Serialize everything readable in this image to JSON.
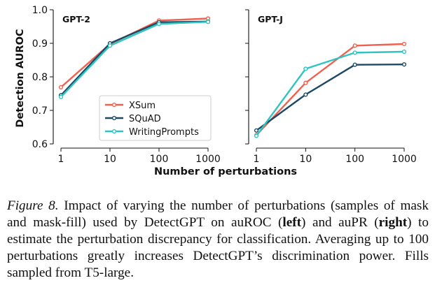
{
  "figure": {
    "ylabel": "Detection AUROC",
    "xlabel": "Number of perturbations",
    "legend": [
      "XSum",
      "SQuAD",
      "WritingPrompts"
    ]
  },
  "chart_data": [
    {
      "type": "line",
      "title": "GPT-2",
      "x": [
        1,
        10,
        100,
        1000
      ],
      "xscale": "log",
      "ylim": [
        0.6,
        1.0
      ],
      "yticks": [
        0.6,
        0.7,
        0.8,
        0.9,
        1.0
      ],
      "xticks": [
        "1",
        "10",
        "100",
        "1000"
      ],
      "grid": false,
      "legend_position": "lower-right",
      "series": [
        {
          "name": "XSum",
          "color": "#f0604e",
          "values": [
            0.769,
            0.898,
            0.968,
            0.974
          ]
        },
        {
          "name": "SQuAD",
          "color": "#1b4965",
          "values": [
            0.745,
            0.9,
            0.963,
            0.965
          ]
        },
        {
          "name": "WritingPrompts",
          "color": "#2ec4c0",
          "values": [
            0.74,
            0.893,
            0.958,
            0.964
          ]
        }
      ]
    },
    {
      "type": "line",
      "title": "GPT-J",
      "x": [
        1,
        10,
        100,
        1000
      ],
      "xscale": "log",
      "ylim": [
        0.6,
        1.0
      ],
      "yticks": [
        0.6,
        0.7,
        0.8,
        0.9,
        1.0
      ],
      "xticks": [
        "1",
        "10",
        "100",
        "1000"
      ],
      "grid": false,
      "series": [
        {
          "name": "XSum",
          "color": "#f0604e",
          "values": [
            0.626,
            0.782,
            0.893,
            0.898
          ]
        },
        {
          "name": "SQuAD",
          "color": "#1b4965",
          "values": [
            0.64,
            0.747,
            0.836,
            0.837
          ]
        },
        {
          "name": "WritingPrompts",
          "color": "#2ec4c0",
          "values": [
            0.624,
            0.824,
            0.872,
            0.875
          ]
        }
      ]
    }
  ],
  "caption": {
    "label": "Figure 8.",
    "part1": " Impact of varying the number of perturbations (samples of mask and mask-fill) used by DetectGPT on auROC (",
    "left": "left",
    "part2": ") and auPR (",
    "right": "right",
    "part3": ") to estimate the perturbation discrepancy for classification.  Averaging up to 100 perturbations greatly increases DetectGPT’s discrimination power. Fills sampled from T5-large."
  }
}
